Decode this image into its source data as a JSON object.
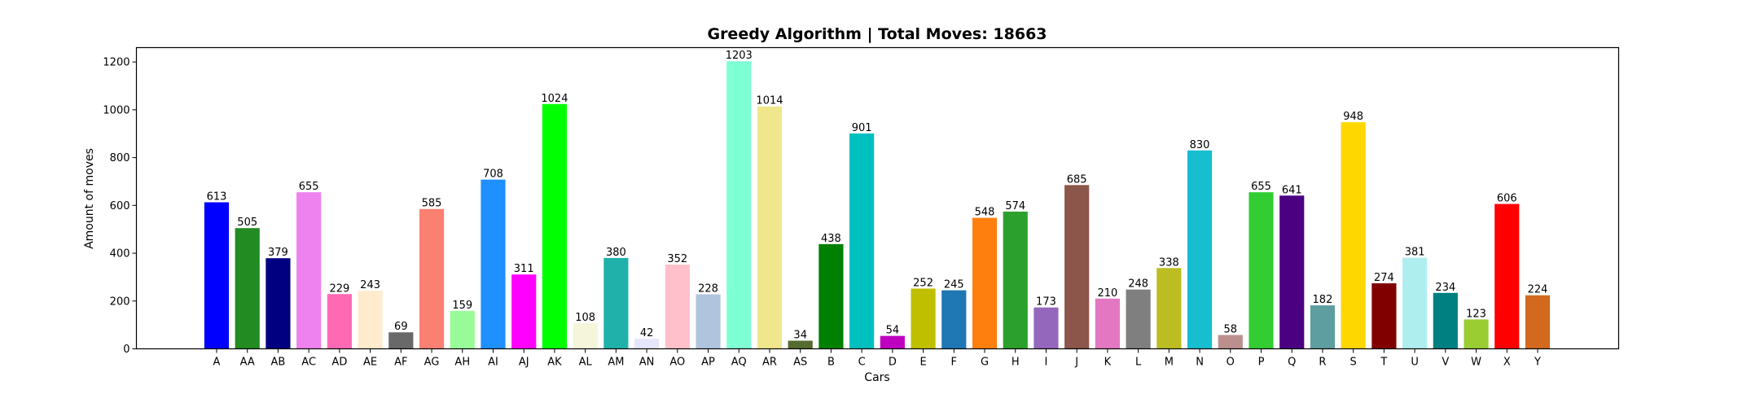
{
  "chart_data": {
    "type": "bar",
    "title": "Greedy Algorithm | Total Moves: 18663",
    "xlabel": "Cars",
    "ylabel": "Amount of moves",
    "ylim": [
      0,
      1260
    ],
    "yticks": [
      0,
      200,
      400,
      600,
      800,
      1000,
      1200
    ],
    "grid": false,
    "legend": "none",
    "categories": [
      "A",
      "AA",
      "AB",
      "AC",
      "AD",
      "AE",
      "AF",
      "AG",
      "AH",
      "AI",
      "AJ",
      "AK",
      "AL",
      "AM",
      "AN",
      "AO",
      "AP",
      "AQ",
      "AR",
      "AS",
      "B",
      "C",
      "D",
      "E",
      "F",
      "G",
      "H",
      "I",
      "J",
      "K",
      "L",
      "M",
      "N",
      "O",
      "P",
      "Q",
      "R",
      "S",
      "T",
      "U",
      "V",
      "W",
      "X",
      "Y"
    ],
    "values": [
      613,
      505,
      379,
      655,
      229,
      243,
      69,
      585,
      159,
      708,
      311,
      1024,
      108,
      380,
      42,
      352,
      228,
      1203,
      1014,
      34,
      438,
      901,
      54,
      252,
      245,
      548,
      574,
      173,
      685,
      210,
      248,
      338,
      830,
      58,
      655,
      641,
      182,
      948,
      274,
      381,
      234,
      123,
      606,
      224
    ],
    "colors": [
      "#0000ff",
      "#228b22",
      "#000080",
      "#ee82ee",
      "#ff69b4",
      "#ffebcd",
      "#696969",
      "#fa8072",
      "#98fb98",
      "#1e90ff",
      "#ff00ff",
      "#00ff00",
      "#f5f5dc",
      "#20b2aa",
      "#e6e6fa",
      "#ffc0cb",
      "#b0c4de",
      "#7fffd4",
      "#f0e68c",
      "#556b2f",
      "#008000",
      "#00bfbf",
      "#c000c0",
      "#bfbf00",
      "#1f77b4",
      "#ff7f0e",
      "#2ca02c",
      "#9467bd",
      "#8c564b",
      "#e377c2",
      "#7f7f7f",
      "#bcbd22",
      "#17becf",
      "#bc8f8f",
      "#32cd32",
      "#4b0082",
      "#5f9ea0",
      "#ffd700",
      "#800000",
      "#afeeee",
      "#008080",
      "#9acd32",
      "#ff0000",
      "#d2691e"
    ]
  }
}
